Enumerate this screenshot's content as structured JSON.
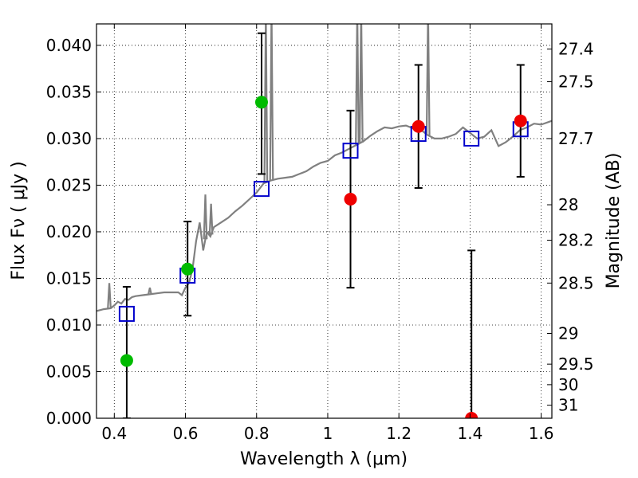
{
  "chart_data": {
    "type": "scatter",
    "xlabel": "Wavelength  λ (μm)",
    "ylabel": "Flux  Fν  ( μJy )",
    "y2label": "Magnitude (AB)",
    "xlim": [
      0.35,
      1.63
    ],
    "ylim": [
      0.0,
      0.0423
    ],
    "grid": true,
    "x_ticks": [
      0.4,
      0.6,
      0.8,
      1.0,
      1.2,
      1.4,
      1.6
    ],
    "x_tick_labels": [
      "0.4",
      "0.6",
      "0.8",
      "1",
      "1.2",
      "1.4",
      "1.6"
    ],
    "y_ticks": [
      0.0,
      0.005,
      0.01,
      0.015,
      0.02,
      0.025,
      0.03,
      0.035,
      0.04
    ],
    "y_tick_labels": [
      "0.000",
      "0.005",
      "0.010",
      "0.015",
      "0.020",
      "0.025",
      "0.030",
      "0.035",
      "0.040"
    ],
    "mag_ticks": [
      {
        "label": "27.4",
        "flux": 0.0396
      },
      {
        "label": "27.5",
        "flux": 0.0361
      },
      {
        "label": "27.7",
        "flux": 0.03
      },
      {
        "label": "28",
        "flux": 0.0229
      },
      {
        "label": "28.2",
        "flux": 0.0191
      },
      {
        "label": "28.5",
        "flux": 0.0145
      },
      {
        "label": "29",
        "flux": 0.0091
      },
      {
        "label": "29.5",
        "flux": 0.0058
      },
      {
        "label": "30",
        "flux": 0.0036
      },
      {
        "label": "31",
        "flux": 0.0014
      }
    ],
    "colors": {
      "model": "#808080",
      "boxes": "#0000cc",
      "green": "#00bb00",
      "red": "#ee0000",
      "errorbar": "#000000"
    },
    "model_spectrum": {
      "name": "",
      "points": [
        [
          0.35,
          0.0115
        ],
        [
          0.37,
          0.0117
        ],
        [
          0.39,
          0.0118
        ],
        [
          0.4,
          0.0121
        ],
        [
          0.41,
          0.0125
        ],
        [
          0.42,
          0.0123
        ],
        [
          0.43,
          0.0128
        ],
        [
          0.44,
          0.0127
        ],
        [
          0.45,
          0.013
        ],
        [
          0.46,
          0.0131
        ],
        [
          0.48,
          0.0132
        ],
        [
          0.5,
          0.0133
        ],
        [
          0.52,
          0.0134
        ],
        [
          0.54,
          0.0135
        ],
        [
          0.56,
          0.0135
        ],
        [
          0.58,
          0.0135
        ],
        [
          0.59,
          0.0132
        ],
        [
          0.6,
          0.014
        ],
        [
          0.61,
          0.0145
        ],
        [
          0.62,
          0.016
        ],
        [
          0.63,
          0.019
        ],
        [
          0.64,
          0.021
        ],
        [
          0.65,
          0.018
        ],
        [
          0.66,
          0.02
        ],
        [
          0.67,
          0.0195
        ],
        [
          0.68,
          0.0205
        ],
        [
          0.7,
          0.021
        ],
        [
          0.72,
          0.0215
        ],
        [
          0.74,
          0.0222
        ],
        [
          0.76,
          0.0228
        ],
        [
          0.78,
          0.0235
        ],
        [
          0.8,
          0.0242
        ],
        [
          0.82,
          0.0252
        ],
        [
          0.84,
          0.0255
        ],
        [
          0.86,
          0.0257
        ],
        [
          0.88,
          0.0258
        ],
        [
          0.9,
          0.0259
        ],
        [
          0.92,
          0.0262
        ],
        [
          0.94,
          0.0265
        ],
        [
          0.96,
          0.027
        ],
        [
          0.98,
          0.0274
        ],
        [
          1.0,
          0.0276
        ],
        [
          1.02,
          0.0282
        ],
        [
          1.04,
          0.0285
        ],
        [
          1.06,
          0.0289
        ],
        [
          1.08,
          0.0293
        ],
        [
          1.1,
          0.0297
        ],
        [
          1.12,
          0.0303
        ],
        [
          1.14,
          0.0308
        ],
        [
          1.16,
          0.0312
        ],
        [
          1.18,
          0.0311
        ],
        [
          1.2,
          0.0313
        ],
        [
          1.22,
          0.0314
        ],
        [
          1.24,
          0.0311
        ],
        [
          1.26,
          0.031
        ],
        [
          1.28,
          0.0304
        ],
        [
          1.3,
          0.03
        ],
        [
          1.32,
          0.03
        ],
        [
          1.34,
          0.0302
        ],
        [
          1.36,
          0.0305
        ],
        [
          1.38,
          0.0312
        ],
        [
          1.4,
          0.0306
        ],
        [
          1.42,
          0.03
        ],
        [
          1.44,
          0.0302
        ],
        [
          1.46,
          0.0309
        ],
        [
          1.48,
          0.0292
        ],
        [
          1.5,
          0.0296
        ],
        [
          1.52,
          0.0302
        ],
        [
          1.54,
          0.0309
        ],
        [
          1.56,
          0.0312
        ],
        [
          1.58,
          0.0316
        ],
        [
          1.6,
          0.0315
        ],
        [
          1.63,
          0.0319
        ]
      ],
      "emission_lines": [
        {
          "x": 0.386,
          "peak": 0.0145
        },
        {
          "x": 0.5,
          "peak": 0.014
        },
        {
          "x": 0.656,
          "peak": 0.024
        },
        {
          "x": 0.672,
          "peak": 0.023
        },
        {
          "x": 0.826,
          "peak": 0.0423
        },
        {
          "x": 0.842,
          "peak": 0.0423
        },
        {
          "x": 1.083,
          "peak": 0.0423
        },
        {
          "x": 1.094,
          "peak": 0.0423
        },
        {
          "x": 1.282,
          "peak": 0.0423
        }
      ]
    },
    "band_model_fluxes": [
      {
        "x": 0.435,
        "y": 0.0112
      },
      {
        "x": 0.606,
        "y": 0.0153
      },
      {
        "x": 0.814,
        "y": 0.0246
      },
      {
        "x": 1.064,
        "y": 0.0287
      },
      {
        "x": 1.255,
        "y": 0.0305
      },
      {
        "x": 1.404,
        "y": 0.03
      },
      {
        "x": 1.542,
        "y": 0.031
      }
    ],
    "observed_green": [
      {
        "x": 0.435,
        "y": 0.0062,
        "err_low": 0.0,
        "err_high": 0.0141
      },
      {
        "x": 0.606,
        "y": 0.016,
        "err_low": 0.011,
        "err_high": 0.0211
      },
      {
        "x": 0.814,
        "y": 0.0339,
        "err_low": 0.0262,
        "err_high": 0.0413
      }
    ],
    "observed_red": [
      {
        "x": 1.064,
        "y": 0.0235,
        "err_low": 0.014,
        "err_high": 0.033
      },
      {
        "x": 1.255,
        "y": 0.0313,
        "err_low": 0.0247,
        "err_high": 0.0379
      },
      {
        "x": 1.404,
        "y": 0.0,
        "err_low": 0.0,
        "err_high": 0.018
      },
      {
        "x": 1.542,
        "y": 0.0319,
        "err_low": 0.0259,
        "err_high": 0.0379
      }
    ]
  }
}
